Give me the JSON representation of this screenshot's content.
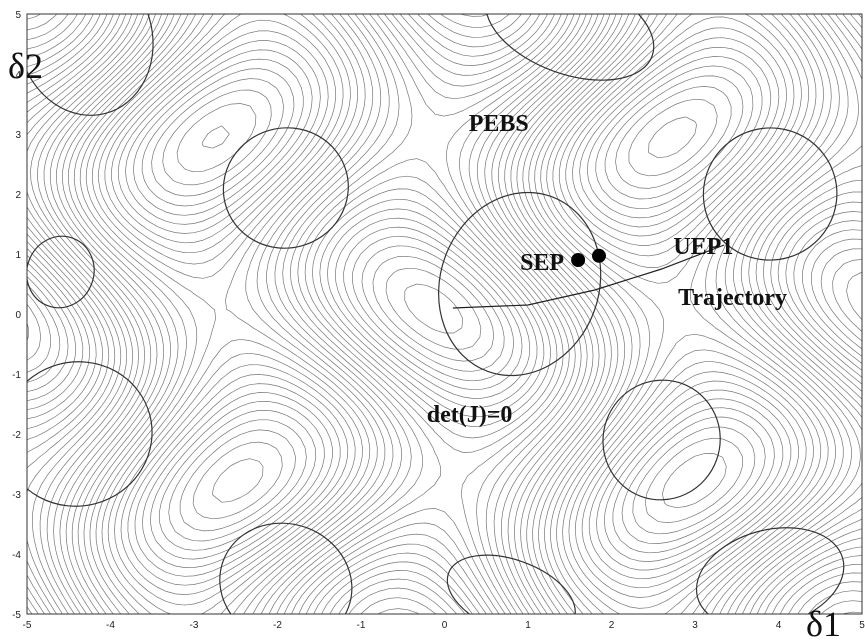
{
  "chart_data": {
    "type": "contour",
    "xlabel": "δ1",
    "ylabel": "δ2",
    "xlim": [
      -5,
      5
    ],
    "ylim": [
      -5,
      5
    ],
    "x_ticks": [
      -5,
      -4,
      -3,
      -2,
      -1,
      0,
      1,
      2,
      3,
      4,
      5
    ],
    "y_ticks": [
      -5,
      -4,
      -3,
      -2,
      -1,
      0,
      1,
      2,
      3,
      4,
      5
    ],
    "grid": false,
    "points": [
      {
        "label": "SEP",
        "x": 1.6,
        "y": 0.9
      },
      {
        "label": "UEP1",
        "x": 1.85,
        "y": 0.97
      }
    ],
    "annotations": [
      {
        "text": "PEBS",
        "x": 0.65,
        "y": 3.2
      },
      {
        "text": "UEP1",
        "x": 3.1,
        "y": 1.15
      },
      {
        "text": "Trajectory",
        "x": 3.45,
        "y": 0.3
      },
      {
        "text": "det(J)=0",
        "x": 0.3,
        "y": -1.65
      }
    ],
    "trajectory": [
      [
        0.1,
        0.1
      ],
      [
        1.0,
        0.15
      ],
      [
        1.8,
        0.4
      ],
      [
        2.6,
        0.75
      ],
      [
        3.35,
        1.15
      ]
    ],
    "det_j_zero_centers": [
      {
        "x": 0.9,
        "y": 0.5
      },
      {
        "x": -1.9,
        "y": 2.1
      },
      {
        "x": 1.5,
        "y": 4.8
      },
      {
        "x": 3.9,
        "y": 2.0
      },
      {
        "x": 2.6,
        "y": -2.1
      },
      {
        "x": -4.4,
        "y": -2.0
      },
      {
        "x": -4.6,
        "y": 0.7
      },
      {
        "x": -4.3,
        "y": 4.6
      },
      {
        "x": -1.9,
        "y": -4.5
      },
      {
        "x": 3.9,
        "y": -4.4
      },
      {
        "x": 0.8,
        "y": -4.7
      }
    ]
  }
}
